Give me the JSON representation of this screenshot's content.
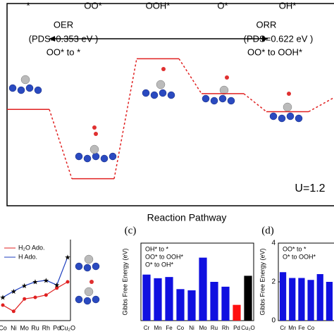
{
  "chart_data": [
    {
      "type": "step",
      "categories": [
        "*",
        "OO*",
        "OOH*",
        "O*",
        "OH*"
      ],
      "values": [
        0,
        -1.23,
        0.9,
        0.28,
        -0.04
      ],
      "ylim": [
        -1.71,
        1.88
      ],
      "color": "#e02020",
      "xlabel": "Reaction Pathway",
      "annotations": {
        "oer": "OER",
        "oer_pds": "(PDS=0.353 eV )",
        "oer_step": "OO*  to *",
        "orr": "ORR",
        "orr_pds": "(PDS=0.622 eV )",
        "orr_step": "OO*  to OOH*",
        "potential": "U=1.2"
      }
    },
    {
      "type": "line",
      "categories": [
        "Co",
        "Ni",
        "Mo",
        "Ru",
        "Rh",
        "Pd",
        "Cu₂O"
      ],
      "ylim": [
        0,
        10
      ],
      "legend": "top-left",
      "series": [
        {
          "name": "H₂O Ado.",
          "color": "#e02020",
          "marker": "circle",
          "values": [
            2.0,
            1.2,
            2.8,
            3.0,
            3.3,
            4.2,
            5.0
          ]
        },
        {
          "name": "H Ado.",
          "color": "#1f3fbf",
          "marker": "star",
          "values": [
            3.0,
            3.8,
            4.5,
            5.0,
            5.2,
            4.6,
            8.2
          ]
        }
      ]
    },
    {
      "type": "bar",
      "panel": "(c)",
      "ylabel": "Gibbs Free Energy (eV)",
      "categories": [
        "Cr",
        "Mn",
        "Fe",
        "Co",
        "Ni",
        "Mo",
        "Ru",
        "Rh",
        "Pd",
        "Cu₂O"
      ],
      "values": [
        1.9,
        1.75,
        1.8,
        1.3,
        1.25,
        2.6,
        1.6,
        1.4,
        0.65,
        1.85
      ],
      "colors": [
        "#1010e0",
        "#1010e0",
        "#1010e0",
        "#1010e0",
        "#1010e0",
        "#1010e0",
        "#1010e0",
        "#1010e0",
        "#ff1010",
        "#000000"
      ],
      "label_colors": [
        "#1010e0",
        "#1010e0",
        "#1010e0",
        "#1010e0",
        "#1010e0",
        "#1010e0",
        "#1010e0",
        "#1010e0",
        "#ff1010",
        "#000000"
      ],
      "ylim": [
        0,
        3.2
      ],
      "legend": [
        {
          "name": "OH* to *",
          "color": "#1010e0"
        },
        {
          "name": "OO* to OOH*",
          "color": "#ff1010"
        },
        {
          "name": "O* to OH*",
          "color": "#000000"
        }
      ]
    },
    {
      "type": "bar",
      "panel": "(d)",
      "ylabel": "Gibbs Free Energy (eV)",
      "categories": [
        "Cr",
        "Mn",
        "Fe",
        "Co",
        null,
        null
      ],
      "values": [
        2.5,
        2.2,
        2.2,
        2.1,
        2.4,
        2.0
      ],
      "colors": [
        "#1010e0",
        "#1010e0",
        "#1010e0",
        "#1010e0",
        "#1010e0",
        "#1010e0"
      ],
      "label_colors": [
        "#1010e0",
        "#1010e0",
        "#1010e0",
        "#1010e0",
        "#1010e0",
        "#1010e0"
      ],
      "ylim": [
        0,
        4
      ],
      "yticks": [
        0,
        2,
        4
      ],
      "legend": [
        {
          "name": "OO* to *",
          "color": "#1010e0"
        },
        {
          "name": "O* to OOH*",
          "color": "#ff1010"
        }
      ]
    }
  ]
}
